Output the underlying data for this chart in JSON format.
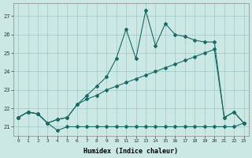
{
  "xlabel": "Humidex (Indice chaleur)",
  "background_color": "#cce8e5",
  "grid_color": "#a0c8c5",
  "line_color": "#1a6b65",
  "xlim": [
    -0.5,
    23.5
  ],
  "ylim": [
    20.5,
    27.7
  ],
  "yticks": [
    21,
    22,
    23,
    24,
    25,
    26,
    27
  ],
  "xticks": [
    0,
    1,
    2,
    3,
    4,
    5,
    6,
    7,
    8,
    9,
    10,
    11,
    12,
    13,
    14,
    15,
    16,
    17,
    18,
    19,
    20,
    21,
    22,
    23
  ],
  "line1_x": [
    0,
    1,
    2,
    3,
    4,
    5,
    6,
    7,
    8,
    9,
    10,
    11,
    12,
    13,
    14,
    15,
    16,
    17,
    18,
    19,
    20,
    21,
    22,
    23
  ],
  "line1_y": [
    21.5,
    21.8,
    21.7,
    21.2,
    21.4,
    21.5,
    22.2,
    22.7,
    23.2,
    23.7,
    24.7,
    26.3,
    24.7,
    27.3,
    25.4,
    26.6,
    26.0,
    25.9,
    25.7,
    25.6,
    25.6,
    21.5,
    21.8,
    21.2
  ],
  "line2_x": [
    0,
    1,
    2,
    3,
    4,
    5,
    6,
    7,
    8,
    9,
    10,
    11,
    12,
    13,
    14,
    15,
    16,
    17,
    18,
    19,
    20,
    21,
    22,
    23
  ],
  "line2_y": [
    21.5,
    21.8,
    21.7,
    21.2,
    21.4,
    21.5,
    22.2,
    22.5,
    22.7,
    23.0,
    23.2,
    23.4,
    23.6,
    23.8,
    24.0,
    24.2,
    24.4,
    24.6,
    24.8,
    25.0,
    25.2,
    21.5,
    21.8,
    21.2
  ],
  "line3_x": [
    0,
    1,
    2,
    3,
    4,
    5,
    6,
    7,
    8,
    9,
    10,
    11,
    12,
    13,
    14,
    15,
    16,
    17,
    18,
    19,
    20,
    21,
    22,
    23
  ],
  "line3_y": [
    21.5,
    21.8,
    21.7,
    21.2,
    20.8,
    21.0,
    21.0,
    21.0,
    21.0,
    21.0,
    21.0,
    21.0,
    21.0,
    21.0,
    21.0,
    21.0,
    21.0,
    21.0,
    21.0,
    21.0,
    21.0,
    21.0,
    21.0,
    21.2
  ]
}
